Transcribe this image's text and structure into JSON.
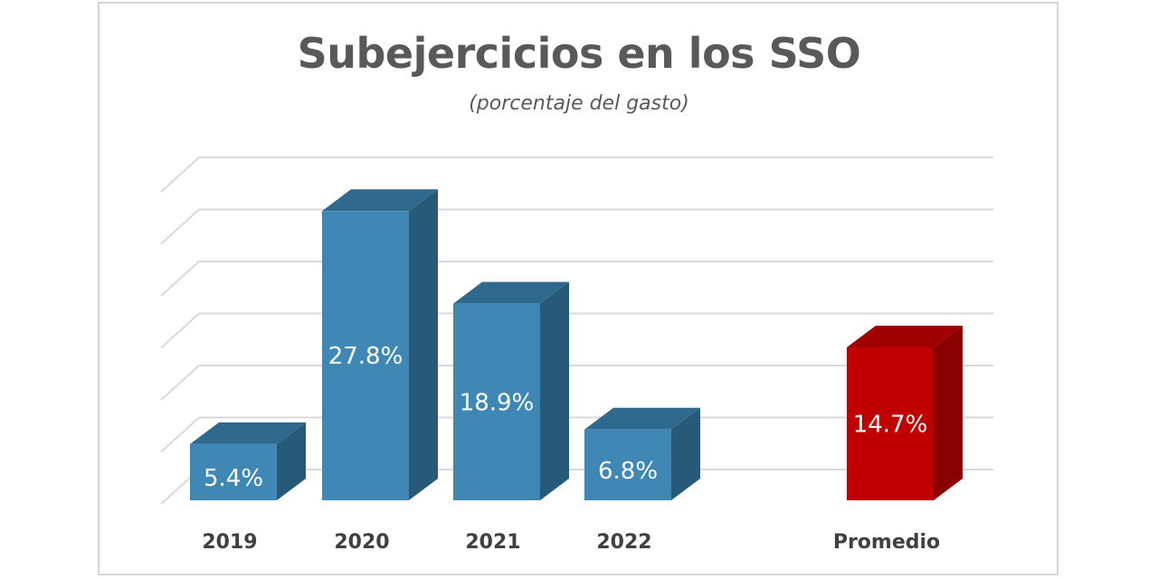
{
  "chart_data": {
    "type": "bar",
    "title": "Subejercicios en los SSO",
    "subtitle": "(porcentaje del gasto)",
    "categories": [
      "2019",
      "2020",
      "2021",
      "2022",
      "Promedio"
    ],
    "values": [
      5.4,
      27.8,
      18.9,
      6.8,
      14.7
    ],
    "labels": [
      "5.4%",
      "27.8%",
      "18.9%",
      "6.8%",
      "14.7%"
    ],
    "xlabel": "",
    "ylabel": "",
    "ylim": [
      0,
      35
    ],
    "grid": true,
    "three_d": true,
    "colors": {
      "bar_front": "#3f87b5",
      "bar_top": "#2f6a8e",
      "bar_side": "#275a78",
      "highlight_front": "#c00000",
      "highlight_top": "#a00000",
      "highlight_side": "#8a0000",
      "grid": "#d9d9d9"
    },
    "highlight_category": "Promedio"
  }
}
